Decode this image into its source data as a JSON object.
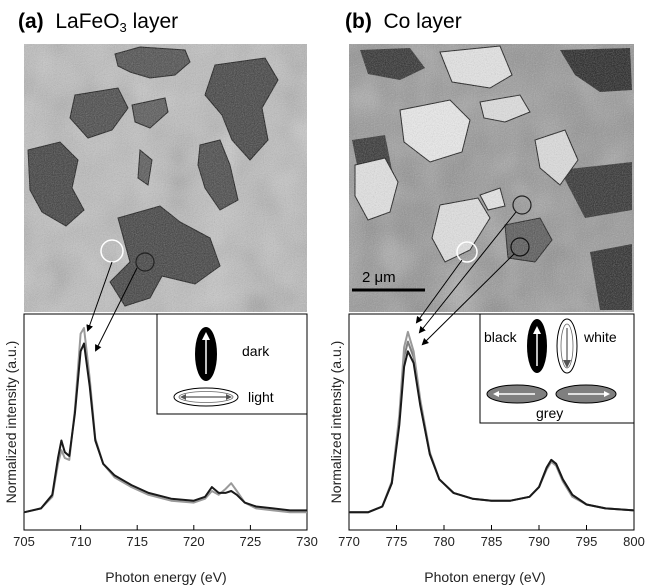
{
  "panel_a": {
    "letter": "(a)",
    "title_main": "LaFeO",
    "title_sub": "3",
    "title_rest": " layer",
    "legend": {
      "dark": "dark",
      "light": "light"
    }
  },
  "panel_b": {
    "letter": "(b)",
    "title": "Co layer",
    "scale_bar": "2 μm",
    "legend": {
      "black": "black",
      "white": "white",
      "grey": "grey"
    }
  },
  "colors": {
    "dark_curve": "#1a1a1a",
    "light_curve": "#9a9a9a",
    "grey_fill": "#7f7f7f"
  },
  "chart_data": [
    {
      "type": "line",
      "xlabel": "Photon energy (eV)",
      "ylabel": "Normalized intensity (a.u.)",
      "xlim": [
        705,
        730
      ],
      "xticks": [
        "705",
        "710",
        "715",
        "720",
        "725",
        "730"
      ],
      "series": [
        {
          "name": "dark",
          "x": [
            705.0,
            706.5,
            707.5,
            708.0,
            708.3,
            708.6,
            709.0,
            709.5,
            710.0,
            710.3,
            710.8,
            711.3,
            712.0,
            713.0,
            714.5,
            716.0,
            718.0,
            720.0,
            721.0,
            721.6,
            722.2,
            722.8,
            723.3,
            723.8,
            724.5,
            725.5,
            727.0,
            728.5,
            730.0
          ],
          "y": [
            0.05,
            0.07,
            0.14,
            0.33,
            0.42,
            0.36,
            0.34,
            0.56,
            0.88,
            0.92,
            0.7,
            0.42,
            0.3,
            0.24,
            0.19,
            0.15,
            0.12,
            0.11,
            0.13,
            0.18,
            0.15,
            0.15,
            0.16,
            0.14,
            0.1,
            0.08,
            0.07,
            0.06,
            0.06
          ]
        },
        {
          "name": "light",
          "x": [
            705.0,
            706.5,
            707.5,
            708.0,
            708.3,
            708.6,
            709.0,
            709.5,
            710.0,
            710.3,
            710.8,
            711.3,
            712.0,
            713.0,
            714.5,
            716.0,
            718.0,
            720.0,
            721.0,
            721.6,
            722.2,
            722.8,
            723.3,
            723.8,
            724.5,
            725.5,
            727.0,
            728.5,
            730.0
          ],
          "y": [
            0.05,
            0.07,
            0.13,
            0.3,
            0.37,
            0.33,
            0.32,
            0.58,
            0.97,
            1.0,
            0.74,
            0.43,
            0.3,
            0.23,
            0.18,
            0.14,
            0.11,
            0.1,
            0.12,
            0.16,
            0.14,
            0.17,
            0.2,
            0.16,
            0.1,
            0.07,
            0.06,
            0.05,
            0.05
          ]
        }
      ]
    },
    {
      "type": "line",
      "xlabel": "Photon energy (eV)",
      "ylabel": "Normalized intensity (a.u.)",
      "xlim": [
        770,
        800
      ],
      "xticks": [
        "770",
        "775",
        "780",
        "785",
        "790",
        "795",
        "800"
      ],
      "series": [
        {
          "name": "black",
          "x": [
            770.0,
            772.0,
            773.5,
            774.5,
            775.3,
            775.8,
            776.2,
            776.8,
            777.5,
            778.5,
            779.5,
            781.0,
            783.0,
            785.0,
            787.0,
            789.0,
            790.0,
            790.8,
            791.3,
            791.8,
            792.5,
            793.5,
            795.0,
            797.0,
            800.0
          ],
          "y": [
            0.05,
            0.05,
            0.08,
            0.2,
            0.5,
            0.8,
            0.88,
            0.82,
            0.6,
            0.35,
            0.22,
            0.15,
            0.12,
            0.11,
            0.11,
            0.13,
            0.18,
            0.28,
            0.32,
            0.3,
            0.22,
            0.14,
            0.09,
            0.07,
            0.06
          ]
        },
        {
          "name": "white",
          "x": [
            770.0,
            772.0,
            773.5,
            774.5,
            775.3,
            775.8,
            776.2,
            776.8,
            777.5,
            778.5,
            779.5,
            781.0,
            783.0,
            785.0,
            787.0,
            789.0,
            790.0,
            790.8,
            791.3,
            791.8,
            792.5,
            793.5,
            795.0,
            797.0,
            800.0
          ],
          "y": [
            0.05,
            0.05,
            0.08,
            0.21,
            0.55,
            0.9,
            0.98,
            0.88,
            0.63,
            0.36,
            0.22,
            0.15,
            0.12,
            0.11,
            0.11,
            0.13,
            0.18,
            0.27,
            0.31,
            0.29,
            0.21,
            0.13,
            0.09,
            0.07,
            0.06
          ]
        },
        {
          "name": "grey",
          "x": [
            770.0,
            772.0,
            773.5,
            774.5,
            775.3,
            775.8,
            776.2,
            776.8,
            777.5,
            778.5,
            779.5,
            781.0,
            783.0,
            785.0,
            787.0,
            789.0,
            790.0,
            790.8,
            791.3,
            791.8,
            792.5,
            793.5,
            795.0,
            797.0,
            800.0
          ],
          "y": [
            0.05,
            0.05,
            0.08,
            0.2,
            0.52,
            0.85,
            0.93,
            0.85,
            0.61,
            0.35,
            0.22,
            0.15,
            0.12,
            0.11,
            0.11,
            0.13,
            0.18,
            0.28,
            0.32,
            0.3,
            0.22,
            0.14,
            0.09,
            0.07,
            0.06
          ]
        }
      ]
    }
  ]
}
